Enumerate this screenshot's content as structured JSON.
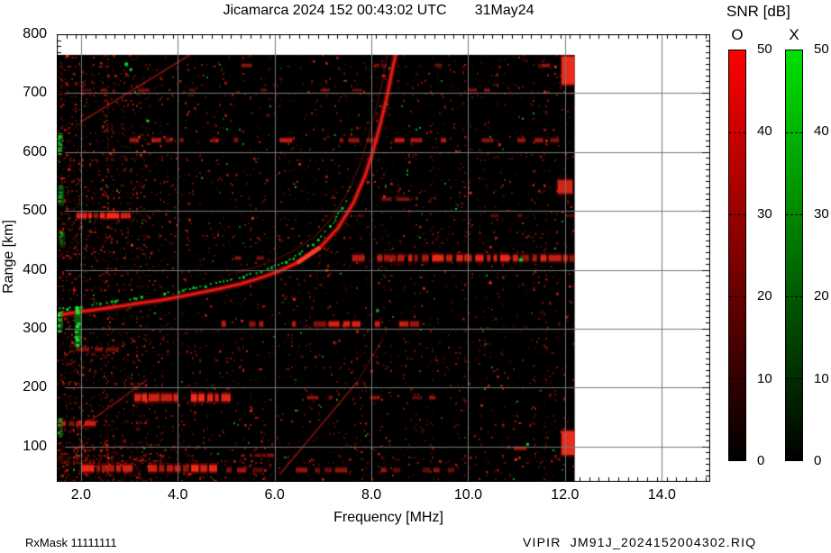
{
  "title": "Jicamarca 2024 152 00:43:02 UTC       31May24",
  "colorbar_panel": {
    "title": "SNR [dB]",
    "vmin": 0,
    "vmax": 50,
    "ticks": [
      0,
      10,
      20,
      30,
      40,
      50
    ],
    "bars": [
      {
        "label": "O",
        "top_color": "#ff0000",
        "bottom_color": "#000000"
      },
      {
        "label": "X",
        "top_color": "#00e100",
        "bottom_color": "#000000"
      }
    ]
  },
  "footer": {
    "left": "RxMask 11111111",
    "right": "VIPIR  JM91J_2024152004302.RIQ"
  },
  "chart_data": {
    "type": "heatmap",
    "title": "Jicamarca 2024 152 00:43:02 UTC       31May24",
    "xlabel": "Frequency [MHz]",
    "ylabel": "Range [km]",
    "xlim": [
      1.5,
      15.0
    ],
    "ylim": [
      40,
      800
    ],
    "xtick_values": [
      2,
      4,
      6,
      8,
      10,
      12,
      14
    ],
    "xtick_labels": [
      "2.0",
      "4.0",
      "6.0",
      "8.0",
      "10.0",
      "12.0",
      "14.0"
    ],
    "ytick_values": [
      100,
      200,
      300,
      400,
      500,
      600,
      700,
      800
    ],
    "ytick_labels": [
      "100",
      "200",
      "300",
      "400",
      "500",
      "600",
      "700",
      "800"
    ],
    "x_minor_step": 0.2,
    "y_minor_step": 10,
    "grid": true,
    "grid_color": "#787878",
    "snr_scale": {
      "min": 0,
      "max": 50,
      "o_color": "#ff0000",
      "x_color": "#00e100"
    },
    "data_extent": {
      "f": [
        1.5,
        12.2
      ],
      "r": [
        40,
        765
      ]
    },
    "o_trace": [
      [
        1.5,
        323
      ],
      [
        2.1,
        330
      ],
      [
        2.56,
        335
      ],
      [
        3.1,
        342
      ],
      [
        3.68,
        349
      ],
      [
        4.2,
        357
      ],
      [
        4.8,
        367
      ],
      [
        5.3,
        376
      ],
      [
        5.73,
        387
      ],
      [
        6.1,
        398
      ],
      [
        6.47,
        412
      ],
      [
        6.94,
        438
      ],
      [
        7.31,
        471
      ],
      [
        7.63,
        514
      ],
      [
        7.87,
        560
      ],
      [
        8.05,
        606
      ],
      [
        8.2,
        652
      ],
      [
        8.33,
        697
      ],
      [
        8.44,
        743
      ],
      [
        8.5,
        765
      ]
    ],
    "o_trace_bright": [
      6.3,
      7.0
    ],
    "x_trace": {
      "df": -0.12,
      "dr": 10,
      "f_end": 7.6
    },
    "rfi_bands": [
      {
        "r": 747,
        "f": [
          3.1,
          12.2
        ],
        "i": 0.5,
        "d": 0.22,
        "t": 6
      },
      {
        "r": 705,
        "f": [
          2.0,
          12.2
        ],
        "i": 0.45,
        "d": 0.18,
        "t": 5
      },
      {
        "r": 620,
        "f": [
          3.0,
          12.2
        ],
        "i": 0.7,
        "d": 0.4,
        "t": 7
      },
      {
        "r": 520,
        "f": [
          7.6,
          12.2
        ],
        "i": 0.45,
        "d": 0.22,
        "t": 6
      },
      {
        "r": 492,
        "f": [
          1.9,
          2.95
        ],
        "i": 0.95,
        "d": 0.92,
        "t": 9
      },
      {
        "r": 492,
        "f": [
          4.6,
          12.2
        ],
        "i": 0.45,
        "d": 0.2,
        "t": 5
      },
      {
        "r": 420,
        "f": [
          7.6,
          12.2
        ],
        "i": 0.9,
        "d": 0.8,
        "t": 11
      },
      {
        "r": 420,
        "f": [
          4.8,
          6.2
        ],
        "i": 0.5,
        "d": 0.35,
        "t": 6
      },
      {
        "r": 364,
        "f": [
          1.5,
          2.7
        ],
        "i": 0.4,
        "d": 0.3,
        "t": 5
      },
      {
        "r": 308,
        "f": [
          4.9,
          8.9
        ],
        "i": 0.8,
        "d": 0.55,
        "t": 9
      },
      {
        "r": 265,
        "f": [
          1.9,
          5.2
        ],
        "i": 0.6,
        "d": 0.5,
        "t": 7
      },
      {
        "r": 183,
        "f": [
          3.1,
          5.0
        ],
        "i": 1.0,
        "d": 0.92,
        "t": 13
      },
      {
        "r": 183,
        "f": [
          6.3,
          10.2
        ],
        "i": 0.5,
        "d": 0.3,
        "t": 6
      },
      {
        "r": 139,
        "f": [
          1.5,
          2.1
        ],
        "i": 0.8,
        "d": 0.8,
        "t": 8
      },
      {
        "r": 97,
        "f": [
          10.3,
          12.2
        ],
        "i": 0.55,
        "d": 0.35,
        "t": 6
      },
      {
        "r": 85,
        "f": [
          4.9,
          6.1
        ],
        "i": 0.5,
        "d": 0.4,
        "t": 6
      },
      {
        "r": 63,
        "f": [
          2.0,
          4.8
        ],
        "i": 1.0,
        "d": 0.92,
        "t": 12
      },
      {
        "r": 60,
        "f": [
          5.0,
          12.2
        ],
        "i": 0.55,
        "d": 0.4,
        "t": 8
      }
    ],
    "edge_patches": [
      {
        "f": [
          11.93,
          12.2
        ],
        "r": [
          715,
          762
        ],
        "i": 0.85
      },
      {
        "f": [
          11.93,
          12.2
        ],
        "r": [
          86,
          126
        ],
        "i": 0.85
      },
      {
        "f": [
          11.85,
          12.15
        ],
        "r": [
          530,
          552
        ],
        "i": 0.7
      }
    ],
    "diagonals": [
      {
        "pts": [
          [
            2.0,
            651
          ],
          [
            4.25,
            765
          ]
        ],
        "i": 0.5,
        "w": 2.2
      },
      {
        "pts": [
          [
            2.0,
            132
          ],
          [
            3.36,
            213
          ]
        ],
        "i": 0.45,
        "w": 2
      },
      {
        "pts": [
          [
            6.1,
            52
          ],
          [
            7.72,
            211
          ]
        ],
        "i": 0.5,
        "w": 2
      },
      {
        "pts": [
          [
            7.72,
            211
          ],
          [
            8.25,
            285
          ]
        ],
        "i": 0.3,
        "w": 1.5
      }
    ],
    "green_streaks": [
      [
        1.55,
        598,
        632,
        0.75
      ],
      [
        1.58,
        508,
        542,
        0.6
      ],
      [
        1.93,
        272,
        338,
        0.95
      ],
      [
        1.55,
        296,
        330,
        0.85
      ],
      [
        1.6,
        438,
        465,
        0.5
      ],
      [
        1.55,
        118,
        148,
        0.6
      ]
    ],
    "green_spots": [
      [
        2.9,
        752,
        4
      ],
      [
        3.0,
        742,
        3
      ],
      [
        3.35,
        655,
        3
      ],
      [
        11.05,
        420,
        4
      ],
      [
        8.1,
        333,
        3
      ],
      [
        11.2,
        106,
        3
      ],
      [
        5.0,
        640,
        2
      ],
      [
        9.0,
        300,
        2
      ]
    ],
    "noise": {
      "seed": 7,
      "red_density": 0.035,
      "green_density": 0.002,
      "low_f_boost": 2.6,
      "low_f_max": 3.4,
      "very_low_f_boost": 1.6,
      "very_low_f_max": 2.3,
      "bottom_boost": 2.0,
      "bottom_r_max": 115
    }
  }
}
